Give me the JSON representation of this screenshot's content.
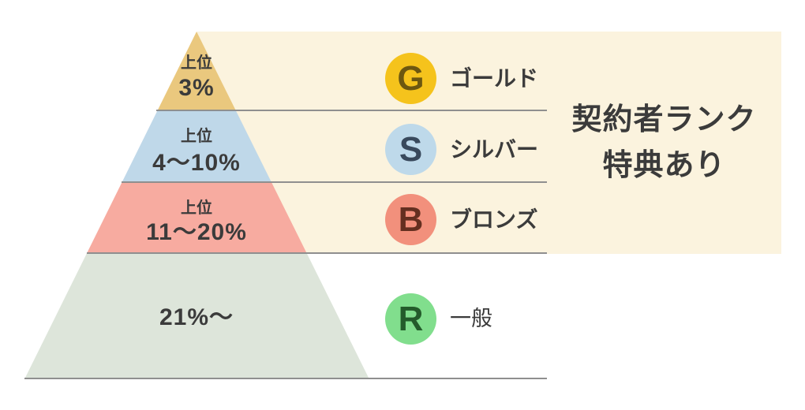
{
  "title": {
    "line1": "契約者ランク",
    "line2": "特典あり"
  },
  "colors": {
    "panel_bg": "#FBF3DE",
    "divider_line": "#8F8F8F",
    "text": "#3B3B3B"
  },
  "tiers": [
    {
      "id": "gold",
      "rank_prefix": "上位",
      "rank_value": "3%",
      "badge_letter": "G",
      "badge_label": "ゴールド",
      "pyramid_color": "#EAC87E",
      "badge_color": "#F5C31C",
      "badge_letter_color": "#6C5710"
    },
    {
      "id": "silver",
      "rank_prefix": "上位",
      "rank_value": "4〜10%",
      "badge_letter": "S",
      "badge_label": "シルバー",
      "pyramid_color": "#BFD8E9",
      "badge_color": "#BED9EA",
      "badge_letter_color": "#39495C"
    },
    {
      "id": "bronze",
      "rank_prefix": "上位",
      "rank_value": "11〜20%",
      "badge_letter": "B",
      "badge_label": "ブロンズ",
      "pyramid_color": "#F7ABA0",
      "badge_color": "#F2907C",
      "badge_letter_color": "#642F20"
    },
    {
      "id": "general",
      "rank_prefix": "",
      "rank_value": "21%〜",
      "badge_letter": "R",
      "badge_label": "一般",
      "pyramid_color": "#DDE5DA",
      "badge_color": "#81DE8D",
      "badge_letter_color": "#245B2B"
    }
  ]
}
